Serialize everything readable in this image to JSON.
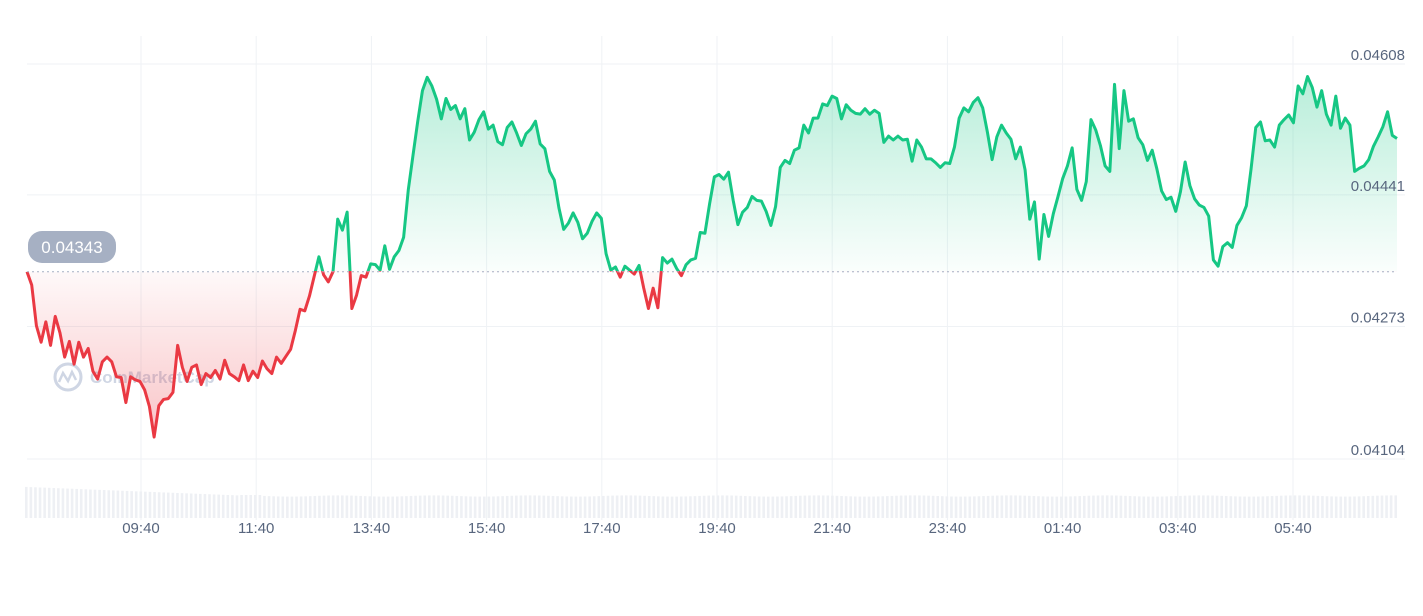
{
  "chart_data": {
    "type": "line",
    "x_labels": [
      "09:40",
      "11:40",
      "13:40",
      "15:40",
      "17:40",
      "19:40",
      "21:40",
      "23:40",
      "01:40",
      "03:40",
      "05:40"
    ],
    "y_ticks": [
      "0.04608",
      "0.04441",
      "0.04273",
      "0.04104"
    ],
    "y_tick_values": [
      0.04608,
      0.04441,
      0.04273,
      0.04104
    ],
    "ylim": [
      0.04038,
      0.04608
    ],
    "reference_value": 0.04343,
    "reference_label": "0.04343",
    "watermark": "CoinMarketCap",
    "grid": true,
    "colors": {
      "up": "#16c784",
      "down": "#ea3943",
      "badge": "#a6b0c3",
      "grid": "#eff2f5"
    },
    "series": [
      {
        "values": [
          0.04343,
          0.04326,
          0.04274,
          0.04253,
          0.04279,
          0.04249,
          0.04286,
          0.04265,
          0.04234,
          0.04254,
          0.04225,
          0.04253,
          0.04234,
          0.04245,
          0.04216,
          0.04206,
          0.04228,
          0.04234,
          0.04228,
          0.04209,
          0.04208,
          0.04176,
          0.04209,
          0.04205,
          0.04203,
          0.04192,
          0.04171,
          0.04132,
          0.04172,
          0.0418,
          0.04181,
          0.04189,
          0.04249,
          0.04221,
          0.04203,
          0.04221,
          0.04224,
          0.04199,
          0.04213,
          0.04208,
          0.04217,
          0.04206,
          0.0423,
          0.04213,
          0.04209,
          0.04204,
          0.04224,
          0.04204,
          0.04216,
          0.04208,
          0.04229,
          0.04219,
          0.04213,
          0.04234,
          0.04226,
          0.04235,
          0.04244,
          0.04268,
          0.04295,
          0.04293,
          0.04312,
          0.04337,
          0.04362,
          0.04339,
          0.0433,
          0.04343,
          0.0441,
          0.04396,
          0.04419,
          0.04296,
          0.04313,
          0.04338,
          0.04336,
          0.04353,
          0.04352,
          0.04345,
          0.04376,
          0.04346,
          0.04362,
          0.0437,
          0.04387,
          0.04448,
          0.04492,
          0.04535,
          0.04574,
          0.04591,
          0.0458,
          0.04563,
          0.04538,
          0.04564,
          0.0455,
          0.04555,
          0.04538,
          0.04551,
          0.04511,
          0.04521,
          0.04537,
          0.04547,
          0.04525,
          0.0453,
          0.04509,
          0.04505,
          0.04527,
          0.04534,
          0.0452,
          0.04504,
          0.04519,
          0.04525,
          0.04535,
          0.04506,
          0.045,
          0.04471,
          0.0446,
          0.04424,
          0.04397,
          0.04405,
          0.04418,
          0.04406,
          0.04385,
          0.04392,
          0.04407,
          0.04418,
          0.04411,
          0.04366,
          0.04345,
          0.04349,
          0.04336,
          0.0435,
          0.04345,
          0.0434,
          0.04351,
          0.04322,
          0.04296,
          0.04322,
          0.04297,
          0.04361,
          0.04354,
          0.04359,
          0.04347,
          0.04338,
          0.04352,
          0.04358,
          0.0436,
          0.04393,
          0.04392,
          0.0443,
          0.04464,
          0.04467,
          0.04461,
          0.0447,
          0.04434,
          0.04403,
          0.04419,
          0.04425,
          0.04439,
          0.04434,
          0.04433,
          0.0442,
          0.04402,
          0.04426,
          0.04476,
          0.04485,
          0.04481,
          0.04498,
          0.04501,
          0.0453,
          0.0452,
          0.04539,
          0.04539,
          0.04557,
          0.04555,
          0.04567,
          0.04564,
          0.04538,
          0.04556,
          0.04549,
          0.04545,
          0.04544,
          0.04551,
          0.04544,
          0.04549,
          0.04545,
          0.04508,
          0.04516,
          0.04511,
          0.04516,
          0.04511,
          0.04512,
          0.04484,
          0.04511,
          0.04502,
          0.04487,
          0.04487,
          0.04482,
          0.04476,
          0.04482,
          0.04481,
          0.04502,
          0.04539,
          0.04552,
          0.04547,
          0.04559,
          0.04565,
          0.04552,
          0.04521,
          0.04486,
          0.04515,
          0.0453,
          0.0452,
          0.04512,
          0.04487,
          0.04502,
          0.04473,
          0.0441,
          0.04432,
          0.04359,
          0.04416,
          0.04388,
          0.04417,
          0.04439,
          0.04462,
          0.04478,
          0.04501,
          0.04448,
          0.04434,
          0.04458,
          0.04537,
          0.04524,
          0.04504,
          0.04478,
          0.04471,
          0.04582,
          0.045,
          0.04574,
          0.04535,
          0.04538,
          0.04514,
          0.04505,
          0.04485,
          0.04498,
          0.04474,
          0.04446,
          0.04435,
          0.04438,
          0.0442,
          0.04445,
          0.04483,
          0.04453,
          0.04436,
          0.04428,
          0.04425,
          0.04414,
          0.04358,
          0.0435,
          0.04375,
          0.0438,
          0.04374,
          0.04402,
          0.04412,
          0.04427,
          0.04474,
          0.04527,
          0.04534,
          0.0451,
          0.04511,
          0.04502,
          0.0453,
          0.04537,
          0.04543,
          0.04533,
          0.0458,
          0.0457,
          0.04592,
          0.04578,
          0.04553,
          0.04574,
          0.04544,
          0.0453,
          0.04567,
          0.04526,
          0.04539,
          0.0453,
          0.04471,
          0.04475,
          0.04478,
          0.04486,
          0.04503,
          0.04515,
          0.04528,
          0.04547,
          0.04517,
          0.04513
        ]
      }
    ]
  }
}
